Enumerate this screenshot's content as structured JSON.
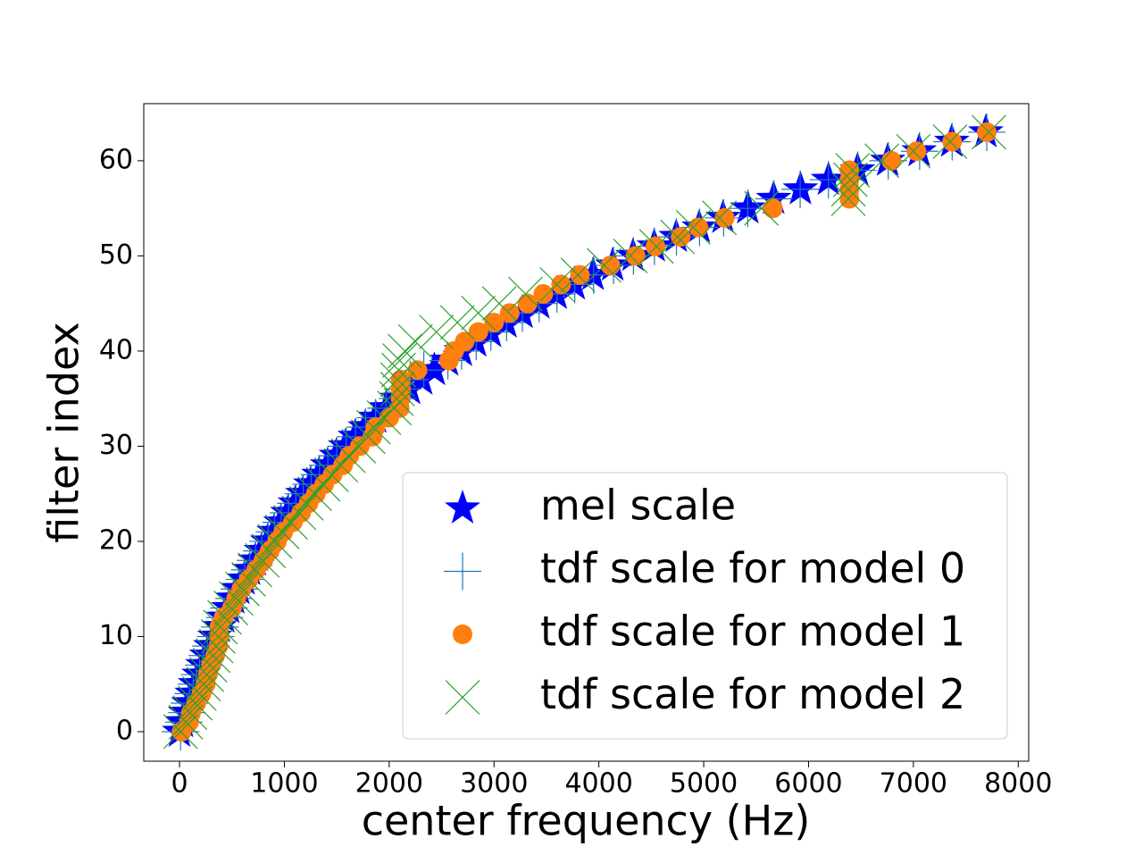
{
  "chart_data": {
    "type": "scatter",
    "xlabel": "center frequency (Hz)",
    "ylabel": "filter index",
    "xlim": [
      -341,
      8100
    ],
    "ylim": [
      -3.1,
      66
    ],
    "xticks": [
      0,
      1000,
      2000,
      3000,
      4000,
      5000,
      6000,
      7000,
      8000
    ],
    "yticks": [
      0,
      10,
      20,
      30,
      40,
      50,
      60
    ],
    "legend": "lower right",
    "series": [
      {
        "name": "mel scale",
        "color": "#0000ff",
        "marker": "star",
        "x": [
          0,
          28,
          57,
          88,
          120,
          152,
          187,
          222,
          260,
          298,
          338,
          380,
          423,
          469,
          516,
          565,
          615,
          668,
          723,
          781,
          840,
          902,
          966,
          1033,
          1103,
          1176,
          1251,
          1330,
          1411,
          1496,
          1584,
          1676,
          1772,
          1871,
          1975,
          2082,
          2194,
          2310,
          2431,
          2557,
          2688,
          2825,
          2966,
          3114,
          3267,
          3427,
          3593,
          3765,
          3945,
          4132,
          4326,
          4528,
          4738,
          4957,
          5184,
          5421,
          5667,
          5923,
          6190,
          6467,
          6755,
          7055,
          7366,
          7691
        ],
        "values": [
          0,
          1,
          2,
          3,
          4,
          5,
          6,
          7,
          8,
          9,
          10,
          11,
          12,
          13,
          14,
          15,
          16,
          17,
          18,
          19,
          20,
          21,
          22,
          23,
          24,
          25,
          26,
          27,
          28,
          29,
          30,
          31,
          32,
          33,
          34,
          35,
          36,
          37,
          38,
          39,
          40,
          41,
          42,
          43,
          44,
          45,
          46,
          47,
          48,
          49,
          50,
          51,
          52,
          53,
          54,
          55,
          56,
          57,
          58,
          59,
          60,
          61,
          62,
          63
        ]
      },
      {
        "name": "tdf scale for model 0",
        "color": "#1f77b4",
        "marker": "plus",
        "x": [
          10,
          40,
          70,
          95,
          130,
          160,
          190,
          230,
          265,
          300,
          345,
          385,
          430,
          470,
          520,
          570,
          620,
          670,
          725,
          785,
          845,
          905,
          970,
          1040,
          1110,
          1180,
          1255,
          1335,
          1415,
          1500,
          1590,
          1680,
          1775,
          1870,
          1970,
          2080,
          2130,
          2200,
          2330,
          2560,
          2690,
          2830,
          2970,
          3120,
          3270,
          3430,
          3600,
          3770,
          3950,
          4140,
          4330,
          4530,
          4740,
          4960,
          5190,
          5420,
          5670,
          5920,
          6190,
          6470,
          6760,
          7060,
          7370,
          7700
        ],
        "values": [
          0,
          1,
          2,
          3,
          4,
          5,
          6,
          7,
          8,
          9,
          10,
          11,
          12,
          13,
          14,
          15,
          16,
          17,
          18,
          19,
          20,
          21,
          22,
          23,
          24,
          25,
          26,
          27,
          28,
          29,
          30,
          31,
          32,
          33,
          34,
          35,
          36,
          37,
          38,
          39,
          40,
          41,
          42,
          43,
          44,
          45,
          46,
          47,
          48,
          49,
          50,
          51,
          52,
          53,
          54,
          55,
          56,
          57,
          58,
          59,
          60,
          61,
          62,
          63
        ]
      },
      {
        "name": "tdf scale for model 1",
        "color": "#ff7f0e",
        "marker": "circle",
        "x": [
          20,
          90,
          110,
          160,
          210,
          250,
          270,
          300,
          340,
          370,
          380,
          380,
          420,
          500,
          540,
          590,
          660,
          730,
          800,
          860,
          930,
          990,
          1080,
          1160,
          1230,
          1300,
          1380,
          1460,
          1560,
          1620,
          1720,
          1840,
          1870,
          2000,
          2100,
          2110,
          2110,
          2110,
          2270,
          2570,
          2620,
          2720,
          2850,
          3000,
          3150,
          3320,
          3470,
          3640,
          3820,
          4110,
          4350,
          4540,
          4780,
          4950,
          5200,
          5660,
          6390,
          6390,
          6390,
          6390,
          6790,
          7030,
          7370,
          7700
        ],
        "values": [
          0,
          1,
          2,
          3,
          4,
          5,
          6,
          7,
          8,
          9,
          10,
          11,
          12,
          13,
          14,
          15,
          16,
          17,
          18,
          19,
          20,
          21,
          22,
          23,
          24,
          25,
          26,
          27,
          28,
          29,
          30,
          31,
          32,
          33,
          34,
          35,
          36,
          37,
          38,
          39,
          40,
          41,
          42,
          43,
          44,
          45,
          46,
          47,
          48,
          49,
          50,
          51,
          52,
          53,
          54,
          55,
          56,
          57,
          58,
          59,
          60,
          61,
          62,
          63
        ]
      },
      {
        "name": "tdf scale for model 2",
        "color": "#2ca02c",
        "marker": "x",
        "x": [
          10,
          60,
          100,
          150,
          190,
          230,
          260,
          290,
          320,
          350,
          370,
          390,
          430,
          490,
          540,
          600,
          660,
          720,
          790,
          850,
          910,
          980,
          1060,
          1140,
          1210,
          1290,
          1370,
          1450,
          1540,
          1610,
          1710,
          1800,
          1850,
          1950,
          2050,
          2070,
          2080,
          2080,
          2090,
          2100,
          2150,
          2250,
          2450,
          2650,
          2850,
          3050,
          3300,
          3600,
          3800,
          4050,
          4300,
          4550,
          4750,
          4900,
          5150,
          5550,
          6380,
          6380,
          6400,
          6420,
          6700,
          7000,
          7350,
          7720
        ],
        "values": [
          0,
          1,
          2,
          3,
          4,
          5,
          6,
          7,
          8,
          9,
          10,
          11,
          12,
          13,
          14,
          15,
          16,
          17,
          18,
          19,
          20,
          21,
          22,
          23,
          24,
          25,
          26,
          27,
          28,
          29,
          30,
          31,
          32,
          33,
          34,
          35,
          36,
          37,
          38,
          39,
          40,
          41,
          42,
          43,
          44,
          45,
          46,
          47,
          48,
          49,
          50,
          51,
          52,
          53,
          54,
          55,
          56,
          57,
          58,
          59,
          60,
          61,
          62,
          63
        ]
      }
    ]
  }
}
